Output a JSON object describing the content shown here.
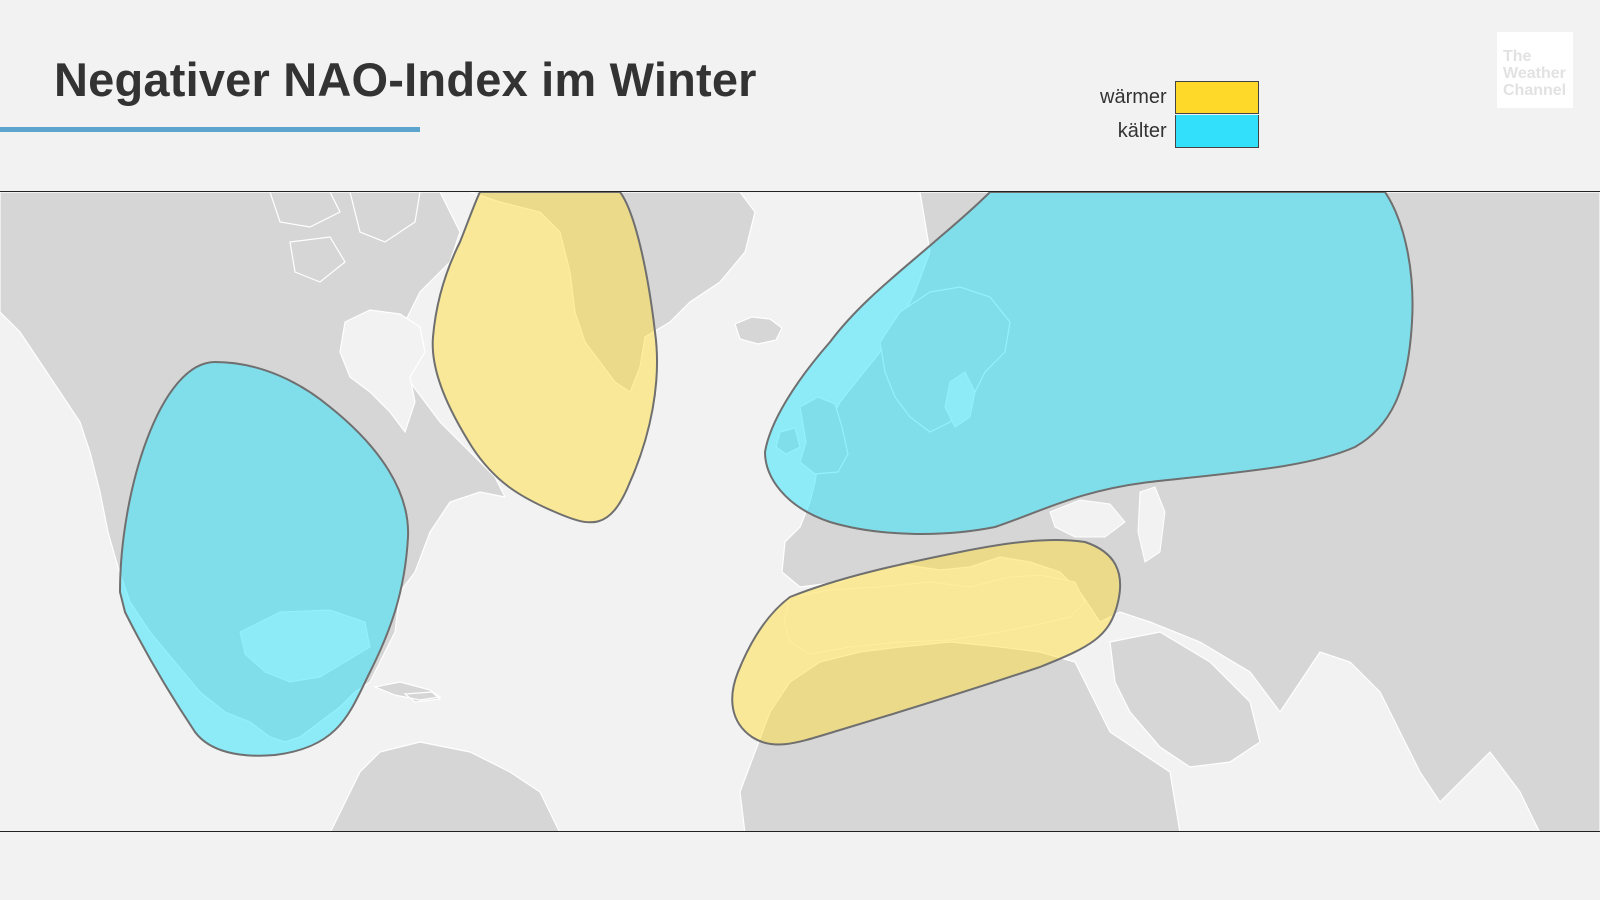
{
  "header": {
    "title": "Negativer NAO-Index im Winter"
  },
  "legend": {
    "items": [
      {
        "label": "wärmer",
        "color": "#ffd92a"
      },
      {
        "label": "kälter",
        "color": "#33e0fb"
      }
    ]
  },
  "logo": {
    "line1": "The",
    "line2": "Weather",
    "line3": "Channel"
  },
  "map": {
    "land_color": "#d6d6d6",
    "ocean_color": "#f2f2f2",
    "regions": [
      {
        "name": "north-america-cold",
        "type": "kälter"
      },
      {
        "name": "greenland-labrador-warm",
        "type": "wärmer"
      },
      {
        "name": "north-europe-cold",
        "type": "kälter"
      },
      {
        "name": "mediterranean-warm",
        "type": "wärmer"
      }
    ],
    "warm_fill": "#ffde3c",
    "cold_fill": "#3ae3fb"
  }
}
